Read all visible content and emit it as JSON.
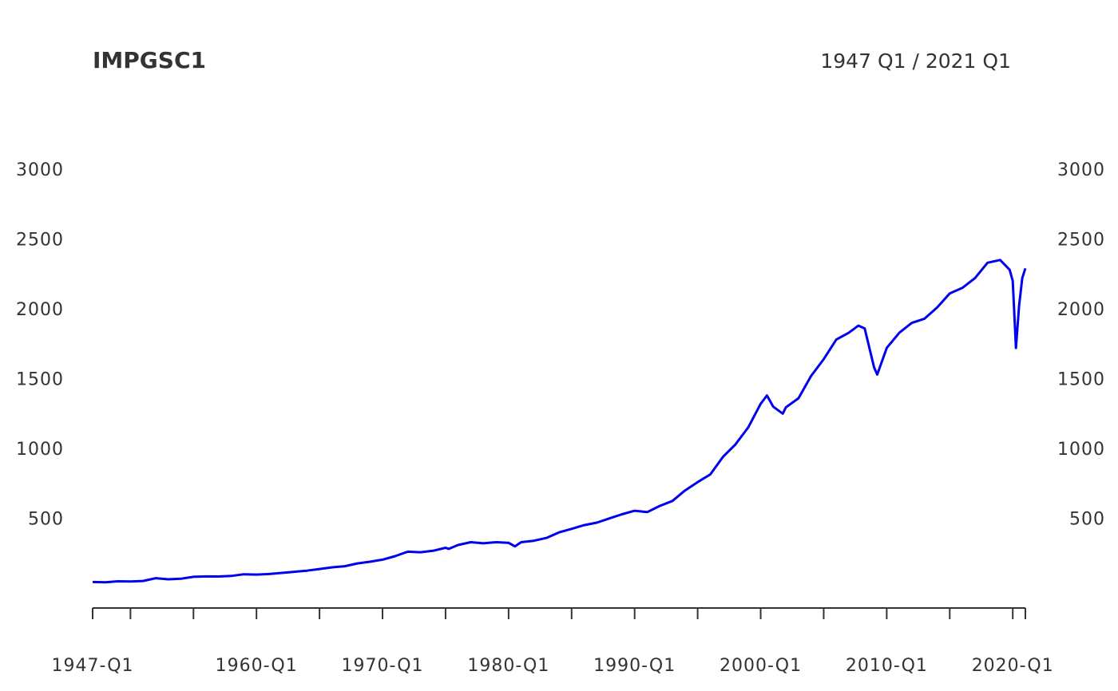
{
  "chart_data": {
    "type": "line",
    "title": "IMPGSC1",
    "date_range_label": "1947 Q1 / 2021 Q1",
    "xlabel": "",
    "ylabel": "",
    "ylim": [
      -130,
      3480
    ],
    "y_ticks": [
      500,
      1000,
      1500,
      2000,
      2500,
      3000
    ],
    "y_tick_labels": [
      "500",
      "1000",
      "1500",
      "2000",
      "2500",
      "3000"
    ],
    "x_ticks": [
      "1947-Q1",
      "1950-Q1",
      "1955-Q1",
      "1960-Q1",
      "1965-Q1",
      "1970-Q1",
      "1975-Q1",
      "1980-Q1",
      "1985-Q1",
      "1990-Q1",
      "1995-Q1",
      "2000-Q1",
      "2005-Q1",
      "2010-Q1",
      "2015-Q1",
      "2020-Q1",
      "2021-Q1"
    ],
    "x_tick_labels": [
      {
        "at": "1947-Q1",
        "text": "1947-Q1"
      },
      {
        "at": "1960-Q1",
        "text": "1960-Q1"
      },
      {
        "at": "1970-Q1",
        "text": "1970-Q1"
      },
      {
        "at": "1980-Q1",
        "text": "1980-Q1"
      },
      {
        "at": "1990-Q1",
        "text": "1990-Q1"
      },
      {
        "at": "2000-Q1",
        "text": "2000-Q1"
      },
      {
        "at": "2010-Q1",
        "text": "2010-Q1"
      },
      {
        "at": "2020-Q1",
        "text": "2020-Q1"
      }
    ],
    "grid": false,
    "series": [
      {
        "color": "#0000ee",
        "points": [
          [
            "1947-Q1",
            45
          ],
          [
            "1948-Q1",
            43
          ],
          [
            "1949-Q1",
            50
          ],
          [
            "1950-Q1",
            48
          ],
          [
            "1951-Q1",
            52
          ],
          [
            "1952-Q1",
            72
          ],
          [
            "1953-Q1",
            64
          ],
          [
            "1954-Q1",
            68
          ],
          [
            "1955-Q1",
            82
          ],
          [
            "1956-Q1",
            85
          ],
          [
            "1957-Q1",
            84
          ],
          [
            "1958-Q1",
            88
          ],
          [
            "1959-Q1",
            100
          ],
          [
            "1960-Q1",
            98
          ],
          [
            "1961-Q1",
            102
          ],
          [
            "1962-Q1",
            110
          ],
          [
            "1963-Q1",
            118
          ],
          [
            "1964-Q1",
            126
          ],
          [
            "1965-Q1",
            138
          ],
          [
            "1966-Q1",
            150
          ],
          [
            "1967-Q1",
            158
          ],
          [
            "1968-Q1",
            178
          ],
          [
            "1969-Q1",
            190
          ],
          [
            "1970-Q1",
            205
          ],
          [
            "1971-Q1",
            230
          ],
          [
            "1972-Q1",
            262
          ],
          [
            "1973-Q1",
            258
          ],
          [
            "1974-Q1",
            268
          ],
          [
            "1975-Q1",
            290
          ],
          [
            "1975-Q2",
            282
          ],
          [
            "1976-Q1",
            310
          ],
          [
            "1977-Q1",
            330
          ],
          [
            "1978-Q1",
            322
          ],
          [
            "1979-Q1",
            330
          ],
          [
            "1980-Q1",
            325
          ],
          [
            "1980-Q3",
            300
          ],
          [
            "1981-Q1",
            330
          ],
          [
            "1982-Q1",
            340
          ],
          [
            "1983-Q1",
            360
          ],
          [
            "1984-Q1",
            400
          ],
          [
            "1985-Q1",
            425
          ],
          [
            "1986-Q1",
            452
          ],
          [
            "1987-Q1",
            470
          ],
          [
            "1988-Q1",
            500
          ],
          [
            "1989-Q1",
            530
          ],
          [
            "1990-Q1",
            555
          ],
          [
            "1991-Q1",
            545
          ],
          [
            "1992-Q1",
            590
          ],
          [
            "1993-Q1",
            625
          ],
          [
            "1994-Q1",
            700
          ],
          [
            "1995-Q1",
            760
          ],
          [
            "1996-Q1",
            815
          ],
          [
            "1997-Q1",
            940
          ],
          [
            "1998-Q1",
            1030
          ],
          [
            "1999-Q1",
            1150
          ],
          [
            "2000-Q1",
            1320
          ],
          [
            "2000-Q3",
            1380
          ],
          [
            "2001-Q1",
            1300
          ],
          [
            "2001-Q4",
            1250
          ],
          [
            "2002-Q1",
            1295
          ],
          [
            "2003-Q1",
            1360
          ],
          [
            "2004-Q1",
            1520
          ],
          [
            "2005-Q1",
            1640
          ],
          [
            "2006-Q1",
            1780
          ],
          [
            "2007-Q1",
            1830
          ],
          [
            "2007-Q4",
            1880
          ],
          [
            "2008-Q2",
            1860
          ],
          [
            "2009-Q1",
            1580
          ],
          [
            "2009-Q2",
            1530
          ],
          [
            "2010-Q1",
            1720
          ],
          [
            "2011-Q1",
            1830
          ],
          [
            "2012-Q1",
            1900
          ],
          [
            "2013-Q1",
            1930
          ],
          [
            "2014-Q1",
            2010
          ],
          [
            "2015-Q1",
            2110
          ],
          [
            "2016-Q1",
            2150
          ],
          [
            "2017-Q1",
            2220
          ],
          [
            "2018-Q1",
            2330
          ],
          [
            "2019-Q1",
            2350
          ],
          [
            "2019-Q4",
            2280
          ],
          [
            "2020-Q1",
            2200
          ],
          [
            "2020-Q2",
            1720
          ],
          [
            "2020-Q3",
            2020
          ],
          [
            "2020-Q4",
            2220
          ],
          [
            "2021-Q1",
            2290
          ]
        ]
      }
    ]
  }
}
